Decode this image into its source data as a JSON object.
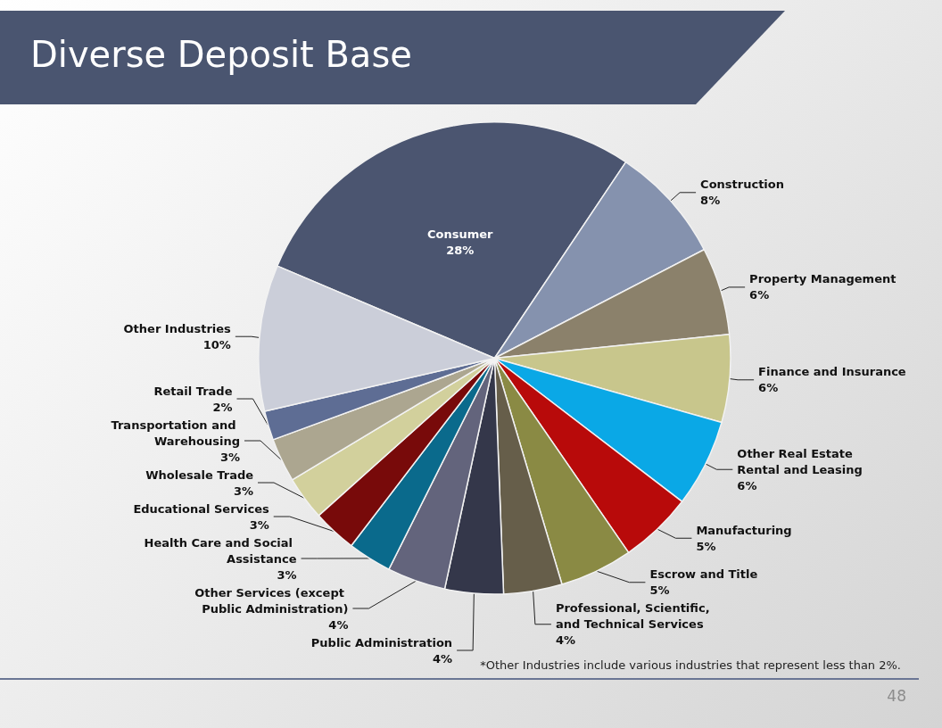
{
  "chart_data": {
    "type": "pie",
    "title": "Diverse Deposit Base",
    "categories": [
      "Consumer",
      "Construction",
      "Property Management",
      "Finance and Insurance",
      "Other Real Estate Rental and Leasing",
      "Manufacturing",
      "Escrow and Title",
      "Professional, Scientific, and Technical Services",
      "Public Administration",
      "Other Services (except Public Administration)",
      "Health Care and Social Assistance",
      "Educational Services",
      "Wholesale Trade",
      "Transportation and Warehousing",
      "Retail Trade",
      "Other Industries"
    ],
    "values": [
      28,
      8,
      6,
      6,
      6,
      5,
      5,
      4,
      4,
      4,
      3,
      3,
      3,
      3,
      2,
      10
    ],
    "value_labels": [
      "28%",
      "8%",
      "6%",
      "6%",
      "6%",
      "5%",
      "5%",
      "4%",
      "4%",
      "4%",
      "3%",
      "3%",
      "3%",
      "3%",
      "2%",
      "10%"
    ],
    "colors": [
      "#4b5570",
      "#8592ae",
      "#8b816b",
      "#c8c68c",
      "#0aa8e6",
      "#b80a0a",
      "#8a8a44",
      "#665e4a",
      "#34374a",
      "#63647c",
      "#0a6a8c",
      "#780a0a",
      "#d2d09c",
      "#aca690",
      "#5e6d94",
      "#cbced9"
    ],
    "legend": false,
    "annotations": [
      "*Other Industries include various industries that represent less than 2%.",
      "48"
    ]
  }
}
